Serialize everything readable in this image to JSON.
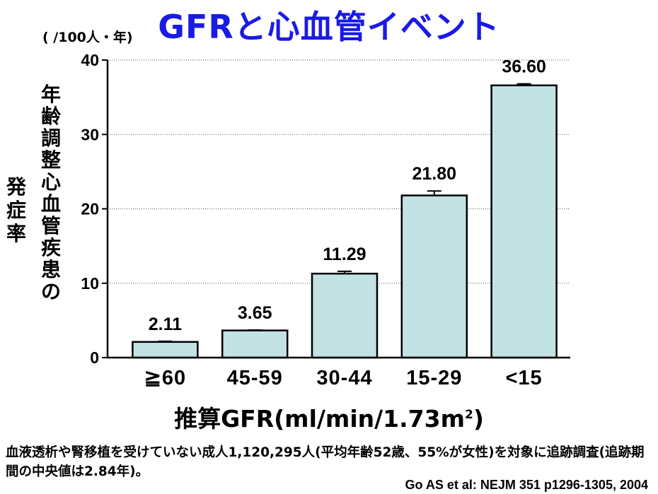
{
  "title": "GFRと心血管イベント",
  "unit_label": "(  /100人・年)",
  "ylabel_main": "年齢調整心血管疾患の",
  "ylabel_sub": "発症率",
  "xlabel_main": "推算GFR(ml/min/1.73m",
  "xlabel_sup": "2",
  "xlabel_close": ")",
  "note": "血液透析や腎移植を受けていない成人1,120,295人(平均年齢52歳、55%が女性)を対象に追跡調査(追跡期間の中央値は2.84年)。",
  "citation": "Go AS et al: NEJM 351 p1296-1305, 2004",
  "colors": {
    "title": "#1a1ae6",
    "bar_fill": "#c2e2e4",
    "bar_stroke": "#000000"
  },
  "chart_data": {
    "type": "bar",
    "categories": [
      "≧60",
      "45-59",
      "30-44",
      "15-29",
      "<15"
    ],
    "values": [
      2.11,
      3.65,
      11.29,
      21.8,
      36.6
    ],
    "value_labels": [
      "2.11",
      "3.65",
      "11.29",
      "21.80",
      "36.60"
    ],
    "error_upper": [
      2.2,
      3.7,
      11.6,
      22.4,
      36.8
    ],
    "ylim": [
      0,
      40
    ],
    "yticks": [
      0,
      10,
      20,
      30,
      40
    ],
    "grid": "horizontal dotted"
  }
}
